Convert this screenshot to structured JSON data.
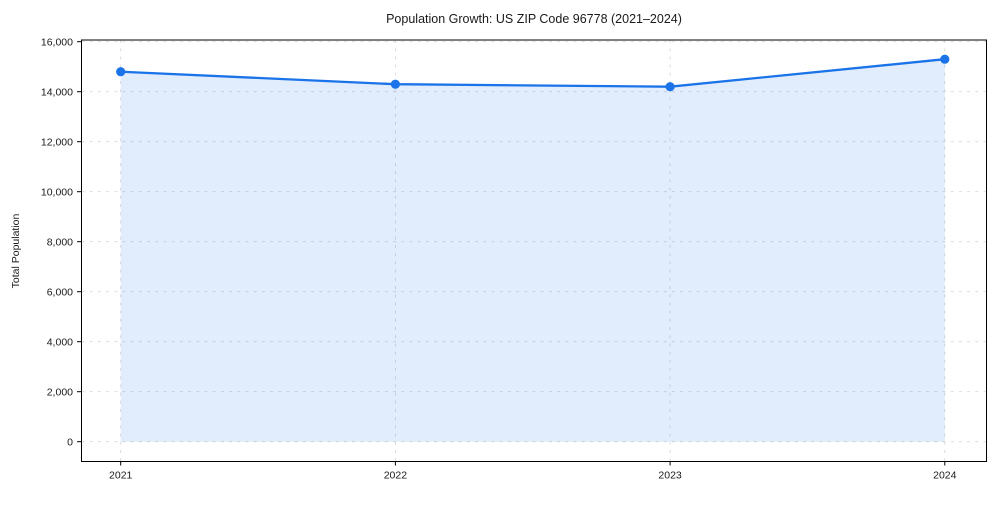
{
  "chart_data": {
    "type": "area",
    "title": "Population Growth: US ZIP Code 96778 (2021–2024)",
    "xlabel": "",
    "ylabel": "Total Population",
    "categories": [
      "2021",
      "2022",
      "2023",
      "2024"
    ],
    "series": [
      {
        "name": "Total Population",
        "values": [
          14800,
          14300,
          14200,
          15300
        ]
      }
    ],
    "ylim": [
      0,
      16000
    ],
    "ytick_values": [
      0,
      2000,
      4000,
      6000,
      8000,
      10000,
      12000,
      14000,
      16000
    ],
    "ytick_labels": [
      "0",
      "2,000",
      "4,000",
      "6,000",
      "8,000",
      "10,000",
      "12,000",
      "14,000",
      "16,000"
    ],
    "grid": true,
    "grid_linestyle": "dashed",
    "legend_position": "none",
    "markers": true,
    "colors": {
      "line": "#1a73e8",
      "marker": "#1a73e8",
      "fill": "#1a73e8",
      "fill_opacity": 0.13,
      "grid": "#d7d7d7",
      "spine": "#000000",
      "text": "#1a1a1a"
    }
  }
}
